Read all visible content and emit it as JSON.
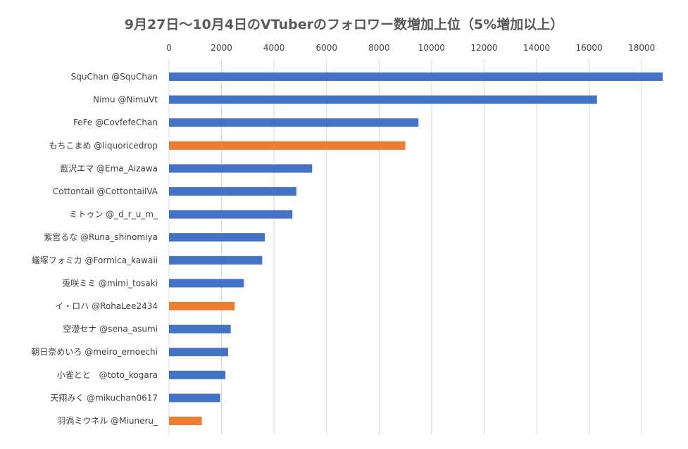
{
  "chart_data": {
    "type": "bar",
    "orientation": "horizontal",
    "title": "9月27日〜10月4日のVTuberのフォロワー数増加上位（5%増加以上）",
    "xlabel": "",
    "ylabel": "",
    "xlim": [
      0,
      18800
    ],
    "x_ticks": [
      0,
      2000,
      4000,
      6000,
      8000,
      10000,
      12000,
      14000,
      16000,
      18000
    ],
    "x_axis_position": "top",
    "grid": true,
    "legend": "none",
    "colors": {
      "blue": "#4472c4",
      "orange": "#ed7d31",
      "grid": "#d9d9d9"
    },
    "categories": [
      "SquChan @SquChan",
      "Nimu @NimuVt",
      "FeFe @CovfefeChan",
      "もちこまめ @liquoricedrop",
      "藍沢エマ @Ema_Aizawa",
      "Cottontail @CottontailVA",
      "ミトゥン @_d_r_u_m_",
      "紫宮るな @Runa_shinomiya",
      "蟻塚フォミカ @Formica_kawaii",
      "兎咲ミミ @mimi_tosaki",
      "イ・ロハ @RohaLee2434",
      "空澄セナ @sena_asumi",
      "朝日奈めいろ @meiro_emoechi",
      "小雀とと　@toto_kogara",
      "天翔みく @mikuchan0617",
      "羽渦ミウネル @Miuneru_"
    ],
    "values": [
      18800,
      16300,
      9500,
      9000,
      5450,
      4850,
      4700,
      3650,
      3550,
      2850,
      2500,
      2350,
      2250,
      2150,
      1950,
      1250
    ],
    "bar_colors": [
      "blue",
      "blue",
      "blue",
      "orange",
      "blue",
      "blue",
      "blue",
      "blue",
      "blue",
      "blue",
      "orange",
      "blue",
      "blue",
      "blue",
      "blue",
      "orange"
    ]
  }
}
